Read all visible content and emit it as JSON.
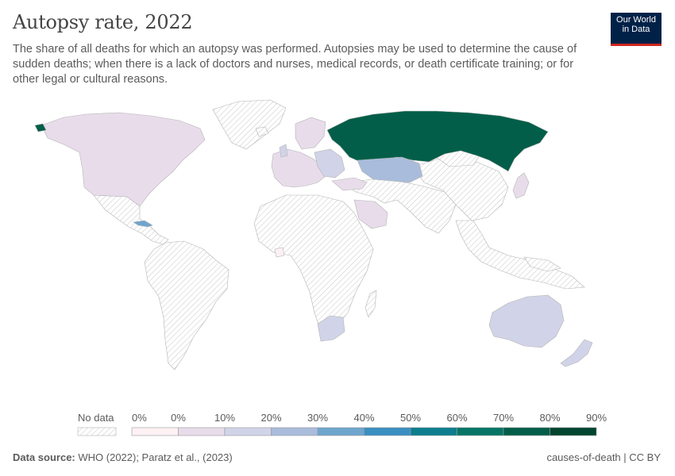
{
  "header": {
    "title": "Autopsy rate, 2022",
    "subtitle": "The share of all deaths for which an autopsy was performed. Autopsies may be used to determine the cause of sudden deaths; when there is a lack of doctors and nurses, medical records, or death certificate training; or for other legal or cultural reasons."
  },
  "logo": {
    "line1": "Our World",
    "line2": "in Data"
  },
  "legend": {
    "no_data_label": "No data",
    "bins": [
      {
        "label": "0%",
        "color": "#fdf1f4"
      },
      {
        "label": "0%",
        "color": "#e8dcea"
      },
      {
        "label": "10%",
        "color": "#d1d3e8"
      },
      {
        "label": "20%",
        "color": "#a9bcdb"
      },
      {
        "label": "30%",
        "color": "#6ea5cd"
      },
      {
        "label": "40%",
        "color": "#3a8fc1"
      },
      {
        "label": "50%",
        "color": "#0c7e8e"
      },
      {
        "label": "60%",
        "color": "#047566"
      },
      {
        "label": "70%",
        "color": "#025e49"
      },
      {
        "label": "80%",
        "color": "#01442f"
      }
    ],
    "end_label": "90%"
  },
  "map_colors": {
    "no_data": "#ececec",
    "very_low": "#e8dcea",
    "low": "#d1d3e8",
    "mid_low": "#a9bcdb",
    "mid": "#6ea5cd",
    "high": "#025e49",
    "border": "#b4b4b4"
  },
  "footer": {
    "source_label": "Data source:",
    "source_text": "WHO (2022); Paratz et al., (2023)",
    "topic": "causes-of-death | CC BY"
  }
}
